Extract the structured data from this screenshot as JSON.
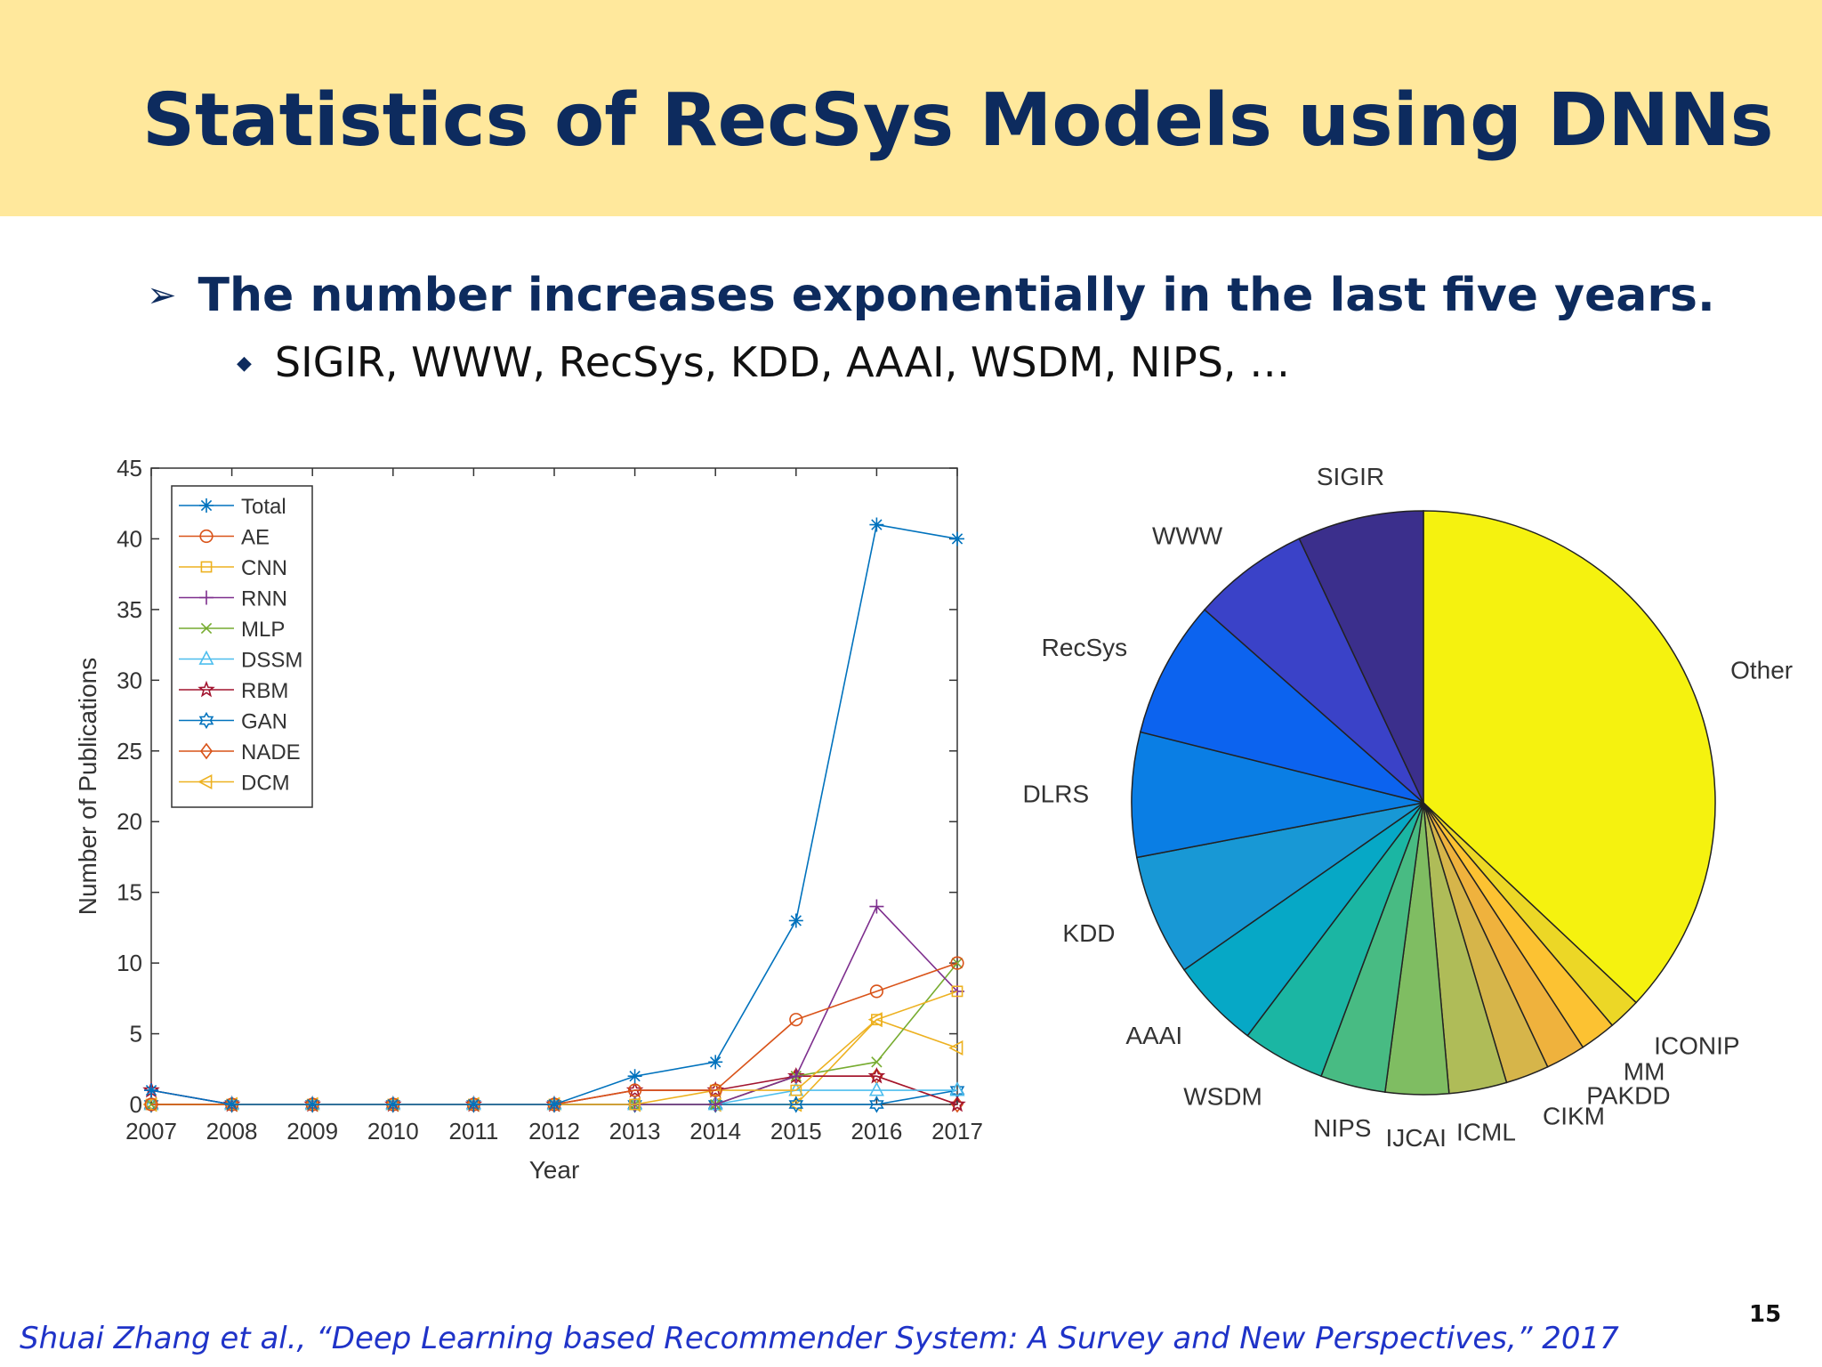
{
  "slide": {
    "title": "Statistics of RecSys Models using DNNs",
    "bullet_marker": "➢",
    "sub_marker": "◆",
    "bullet1": "The number increases exponentially in the last five years.",
    "bullet2": "SIGIR, WWW, RecSys, KDD, AAAI, WSDM, NIPS, …",
    "footer": "Shuai Zhang et al., “Deep Learning based Recommender System: A Survey and New Perspectives,” 2017",
    "page_number": "15"
  },
  "chart_data": [
    {
      "type": "line",
      "xlabel": "Year",
      "ylabel": "Number of Publications",
      "x": [
        2007,
        2008,
        2009,
        2010,
        2011,
        2012,
        2013,
        2014,
        2015,
        2016,
        2017
      ],
      "xlim": [
        2007,
        2017
      ],
      "ylim": [
        0,
        45
      ],
      "yticks": [
        0,
        5,
        10,
        15,
        20,
        25,
        30,
        35,
        40,
        45
      ],
      "legend_position": "top-left",
      "grid": false,
      "series": [
        {
          "name": "Total",
          "color": "#0072bd",
          "marker": "asterisk",
          "values": [
            1,
            0,
            0,
            0,
            0,
            0,
            2,
            3,
            13,
            41,
            40
          ]
        },
        {
          "name": "AE",
          "color": "#d95319",
          "marker": "circle",
          "values": [
            0,
            0,
            0,
            0,
            0,
            0,
            1,
            1,
            6,
            8,
            10
          ]
        },
        {
          "name": "CNN",
          "color": "#edb120",
          "marker": "square",
          "values": [
            0,
            0,
            0,
            0,
            0,
            0,
            0,
            1,
            1,
            6,
            8
          ]
        },
        {
          "name": "RNN",
          "color": "#7e2f8e",
          "marker": "plus",
          "values": [
            1,
            0,
            0,
            0,
            0,
            0,
            0,
            0,
            2,
            14,
            8
          ]
        },
        {
          "name": "MLP",
          "color": "#77ac30",
          "marker": "x",
          "values": [
            0,
            0,
            0,
            0,
            0,
            0,
            0,
            0,
            2,
            3,
            10
          ]
        },
        {
          "name": "DSSM",
          "color": "#4dbeee",
          "marker": "triangle",
          "values": [
            0,
            0,
            0,
            0,
            0,
            0,
            0,
            0,
            1,
            1,
            1
          ]
        },
        {
          "name": "RBM",
          "color": "#a2142f",
          "marker": "pentagram",
          "values": [
            1,
            0,
            0,
            0,
            0,
            0,
            1,
            1,
            2,
            2,
            0
          ]
        },
        {
          "name": "GAN",
          "color": "#0072bd",
          "marker": "hexagram",
          "values": [
            0,
            0,
            0,
            0,
            0,
            0,
            0,
            0,
            0,
            0,
            1
          ]
        },
        {
          "name": "NADE",
          "color": "#d95319",
          "marker": "diamond",
          "values": [
            0,
            0,
            0,
            0,
            0,
            0,
            0,
            0,
            2,
            2,
            0
          ]
        },
        {
          "name": "DCM",
          "color": "#edb120",
          "marker": "triangle-left",
          "values": [
            0,
            0,
            0,
            0,
            0,
            0,
            0,
            0,
            0,
            6,
            4
          ]
        }
      ]
    },
    {
      "type": "pie",
      "start": "top",
      "direction": "clockwise",
      "slices": [
        {
          "label": "Other",
          "value": 37.0,
          "color": "#f5f20f"
        },
        {
          "label": "ICONIP",
          "value": 1.8,
          "color": "#ecd726"
        },
        {
          "label": "MM",
          "value": 2.0,
          "color": "#fcc232"
        },
        {
          "label": "PAKDD",
          "value": 2.2,
          "color": "#efb23d"
        },
        {
          "label": "CIKM",
          "value": 2.4,
          "color": "#d6b54a"
        },
        {
          "label": "ICML",
          "value": 3.2,
          "color": "#afbc58"
        },
        {
          "label": "IJCAI",
          "value": 3.5,
          "color": "#7fbd62"
        },
        {
          "label": "NIPS",
          "value": 3.6,
          "color": "#48bb83"
        },
        {
          "label": "WSDM",
          "value": 4.6,
          "color": "#1bb6a3"
        },
        {
          "label": "AAAI",
          "value": 5.0,
          "color": "#06a8c6"
        },
        {
          "label": "KDD",
          "value": 6.7,
          "color": "#1898d5"
        },
        {
          "label": "DLRS",
          "value": 6.9,
          "color": "#0a7ee4"
        },
        {
          "label": "RecSys",
          "value": 7.6,
          "color": "#0c63ef"
        },
        {
          "label": "WWW",
          "value": 6.5,
          "color": "#3a42c8"
        },
        {
          "label": "SIGIR",
          "value": 7.0,
          "color": "#3b2f8c"
        }
      ]
    }
  ]
}
